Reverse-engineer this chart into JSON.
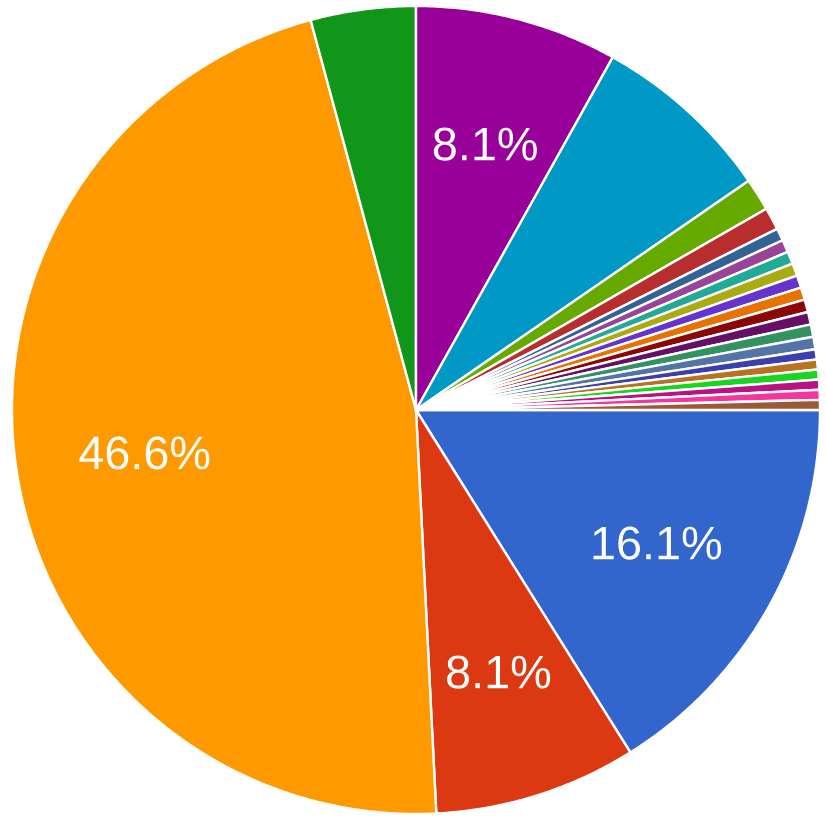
{
  "chart_data": {
    "type": "pie",
    "categories": [
      null,
      null,
      null,
      null,
      null,
      null,
      null,
      null,
      null,
      null,
      null,
      null,
      null,
      null,
      null,
      null,
      null,
      null,
      null,
      null,
      null,
      null,
      null,
      null
    ],
    "values": [
      16.1,
      8.1,
      46.6,
      4.2,
      8.1,
      7.3,
      1.3,
      0.9,
      0.5,
      0.5,
      0.5,
      0.5,
      0.5,
      0.5,
      0.5,
      0.5,
      0.5,
      0.5,
      0.4,
      0.4,
      0.4,
      0.4,
      0.4,
      0.4
    ],
    "colors": [
      "#3366cc",
      "#dc3912",
      "#ff9900",
      "#109618",
      "#990099",
      "#0099c6",
      "#66aa00",
      "#b82e2e",
      "#316395",
      "#994499",
      "#22aa99",
      "#aaaa11",
      "#6633cc",
      "#e67300",
      "#8b0707",
      "#651067",
      "#329262",
      "#5574a6",
      "#3b3eac",
      "#b77322",
      "#16d620",
      "#b91383",
      "#f4359e",
      "#9c5935"
    ],
    "value_labels": [
      "16.1%",
      "8.1%",
      "46.6%",
      null,
      "8.1%",
      null,
      null,
      null,
      null,
      null,
      null,
      null,
      null,
      null,
      null,
      null,
      null,
      null,
      null,
      null,
      null,
      null,
      null,
      null
    ]
  }
}
